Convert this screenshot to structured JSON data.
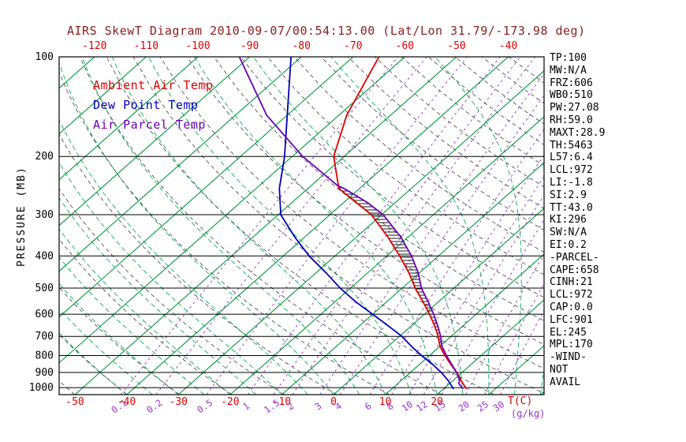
{
  "chart_data": {
    "type": "line",
    "variant": "skew-t-log-p",
    "title": "AIRS SkewT Diagram 2010-09-07/00:54:13.00 (Lat/Lon 31.79/-173.98 deg)",
    "y_axis": {
      "label": "PRESSURE (MB)",
      "scale": "log",
      "range": [
        100,
        1050
      ],
      "ticks": [
        100,
        200,
        300,
        400,
        500,
        600,
        700,
        800,
        900,
        1000
      ]
    },
    "x_axis": {
      "temp_unit": "T(C)",
      "mixing_unit": "(g/kg)",
      "top_ticks": [
        -120,
        -110,
        -100,
        -90,
        -80,
        -70,
        -60,
        -50,
        -40
      ],
      "bottom_ticks": [
        -50,
        -40,
        -30,
        -20,
        -10,
        0,
        10,
        20
      ],
      "mixing_ratio_ticks": [
        0.1,
        0.2,
        0.5,
        1,
        1.5,
        2,
        3,
        4,
        6,
        8,
        10,
        12,
        15,
        20,
        25,
        30
      ]
    },
    "grid": {
      "isotherms_c": {
        "min": -120,
        "max": 40,
        "step": 10
      },
      "dry_adiabats_k": {
        "min": 220,
        "max": 450,
        "step": 10
      },
      "moist_adiabats_c": {
        "min": -40,
        "max": 45,
        "step": 5
      }
    },
    "colors": {
      "title": "#8b2020",
      "axis": "#000000",
      "temperature": "#dd0000",
      "dewpoint": "#0000bb",
      "parcel": "#6a00b8",
      "isotherm": "#009a3c",
      "moist_adiabat": "#00b050",
      "dry_adiabat": "#3d3d3d",
      "mixing_ratio": "#9933cc",
      "hatch": "#000000"
    },
    "series": [
      {
        "name": "Ambient Air Temp",
        "key": "temperature",
        "points": [
          [
            1010,
            24.5
          ],
          [
            1000,
            24
          ],
          [
            950,
            21.5
          ],
          [
            900,
            19
          ],
          [
            850,
            16
          ],
          [
            800,
            13
          ],
          [
            750,
            10
          ],
          [
            700,
            7.5
          ],
          [
            650,
            4.5
          ],
          [
            600,
            1
          ],
          [
            550,
            -3
          ],
          [
            500,
            -7.5
          ],
          [
            450,
            -12
          ],
          [
            400,
            -17.5
          ],
          [
            350,
            -24
          ],
          [
            300,
            -32
          ],
          [
            250,
            -44
          ],
          [
            200,
            -52
          ],
          [
            150,
            -58.5
          ],
          [
            100,
            -65
          ]
        ]
      },
      {
        "name": "Dew Point Temp",
        "key": "dewpoint",
        "points": [
          [
            1010,
            22
          ],
          [
            1000,
            21.5
          ],
          [
            950,
            19
          ],
          [
            900,
            16
          ],
          [
            850,
            12.5
          ],
          [
            800,
            8.5
          ],
          [
            750,
            4.5
          ],
          [
            700,
            0.5
          ],
          [
            650,
            -4.5
          ],
          [
            600,
            -10
          ],
          [
            550,
            -16
          ],
          [
            500,
            -22
          ],
          [
            450,
            -28
          ],
          [
            400,
            -35
          ],
          [
            350,
            -42
          ],
          [
            300,
            -49.5
          ],
          [
            250,
            -55.5
          ],
          [
            200,
            -61.5
          ],
          [
            150,
            -70
          ],
          [
            100,
            -82
          ]
        ]
      },
      {
        "name": "Air Parcel Temp",
        "key": "parcel",
        "points": [
          [
            1010,
            23.8
          ],
          [
            1000,
            23.3
          ],
          [
            972,
            21.8
          ],
          [
            950,
            21.2
          ],
          [
            901,
            19.0
          ],
          [
            850,
            16.2
          ],
          [
            800,
            13.3
          ],
          [
            750,
            10.4
          ],
          [
            700,
            8
          ],
          [
            650,
            5.1
          ],
          [
            600,
            1.8
          ],
          [
            550,
            -2
          ],
          [
            500,
            -6.3
          ],
          [
            450,
            -10.2
          ],
          [
            400,
            -15.2
          ],
          [
            350,
            -21.5
          ],
          [
            300,
            -29.7
          ],
          [
            275,
            -35.6
          ],
          [
            250,
            -43
          ],
          [
            245,
            -44.9
          ],
          [
            200,
            -58
          ],
          [
            150,
            -74
          ],
          [
            100,
            -92
          ]
        ]
      }
    ],
    "cape_region": {
      "from_pressure": 901,
      "to_pressure": 245
    }
  },
  "side_panel": {
    "lines": [
      "TP:100",
      "MW:N/A",
      "FRZ:606",
      "WB0:510",
      "PW:27.08",
      "RH:59.0",
      "MAXT:28.9",
      "TH:5463",
      "L57:6.4",
      "LCL:972",
      "LI:-1.8",
      "SI:2.9",
      "TT:43.0",
      "KI:296",
      "SW:N/A",
      "EI:0.2",
      "-PARCEL-",
      "CAPE:658",
      "CINH:21",
      "LCL:972",
      "CAP:0.0",
      "LFC:901",
      "EL:245",
      "MPL:170",
      "-WIND-",
      "NOT",
      "AVAIL"
    ]
  }
}
